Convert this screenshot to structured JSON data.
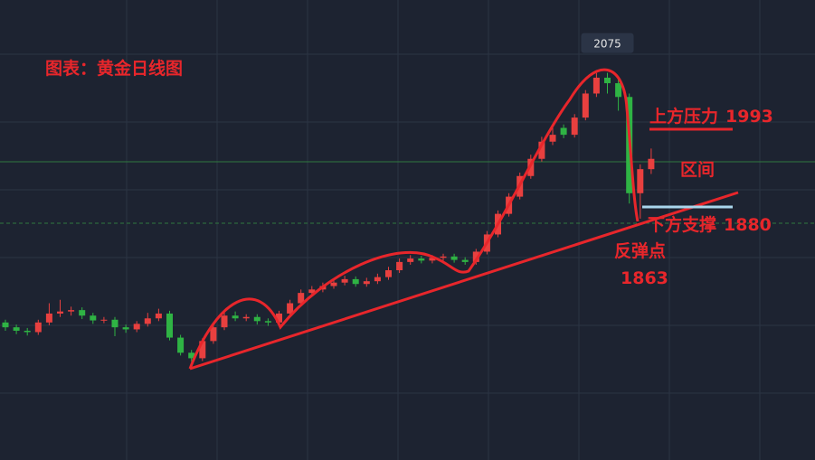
{
  "chart_data": {
    "type": "candlestick",
    "title": "图表：黄金日线图",
    "up_color": "#e8403f",
    "down_color": "#2fb344",
    "ylim": [
      1512,
      2181
    ],
    "open": [
      1712,
      1705,
      1700,
      1698,
      1712,
      1725,
      1728,
      1730,
      1722,
      1715,
      1716,
      1705,
      1702,
      1710,
      1718,
      1725,
      1690,
      1668,
      1660,
      1685,
      1705,
      1722,
      1718,
      1720,
      1714,
      1712,
      1725,
      1740,
      1755,
      1760,
      1765,
      1770,
      1775,
      1768,
      1772,
      1778,
      1788,
      1800,
      1805,
      1802,
      1806,
      1808,
      1803,
      1800,
      1815,
      1840,
      1870,
      1895,
      1925,
      1950,
      1975,
      1995,
      1985,
      2010,
      2045,
      2068,
      2060,
      2040,
      1900,
      1935
    ],
    "high": [
      1716,
      1709,
      1704,
      1716,
      1740,
      1745,
      1735,
      1734,
      1726,
      1720,
      1720,
      1709,
      1714,
      1726,
      1732,
      1729,
      1694,
      1672,
      1689,
      1710,
      1727,
      1728,
      1724,
      1724,
      1718,
      1729,
      1745,
      1760,
      1765,
      1770,
      1775,
      1780,
      1779,
      1777,
      1783,
      1793,
      1805,
      1810,
      1809,
      1810,
      1812,
      1812,
      1807,
      1819,
      1845,
      1875,
      1900,
      1930,
      1956,
      1982,
      1995,
      2000,
      2015,
      2050,
      2074.77,
      2075,
      2066,
      2045,
      1942,
      1965
    ],
    "low": [
      1700,
      1695,
      1693,
      1694,
      1708,
      1720,
      1722,
      1717,
      1710,
      1711,
      1692,
      1697,
      1698,
      1706,
      1714,
      1686,
      1664,
      1655,
      1656,
      1681,
      1701,
      1714,
      1714,
      1709,
      1707,
      1708,
      1721,
      1736,
      1751,
      1756,
      1761,
      1766,
      1764,
      1764,
      1768,
      1774,
      1784,
      1796,
      1798,
      1798,
      1802,
      1799,
      1796,
      1796,
      1811,
      1836,
      1866,
      1891,
      1921,
      1946,
      1970,
      1980,
      1981,
      2006,
      2040,
      2045,
      2020,
      1885,
      1863,
      1928
    ],
    "close": [
      1705,
      1700,
      1698,
      1712,
      1725,
      1728,
      1730,
      1722,
      1715,
      1716,
      1705,
      1702,
      1710,
      1718,
      1725,
      1690,
      1668,
      1660,
      1685,
      1705,
      1722,
      1718,
      1720,
      1714,
      1712,
      1725,
      1740,
      1755,
      1760,
      1765,
      1770,
      1775,
      1768,
      1772,
      1778,
      1788,
      1800,
      1805,
      1802,
      1806,
      1808,
      1803,
      1800,
      1815,
      1840,
      1870,
      1895,
      1925,
      1950,
      1975,
      1985,
      1985,
      2010,
      2045,
      2068,
      2060,
      2040,
      1900,
      1935,
      1950
    ],
    "resistance": {
      "label": "上方压力",
      "value": 1993
    },
    "range_label": "区间",
    "support": {
      "label": "下方支撑",
      "value": 1880
    },
    "rebound": {
      "label": "反弹点",
      "value": 1863
    }
  }
}
